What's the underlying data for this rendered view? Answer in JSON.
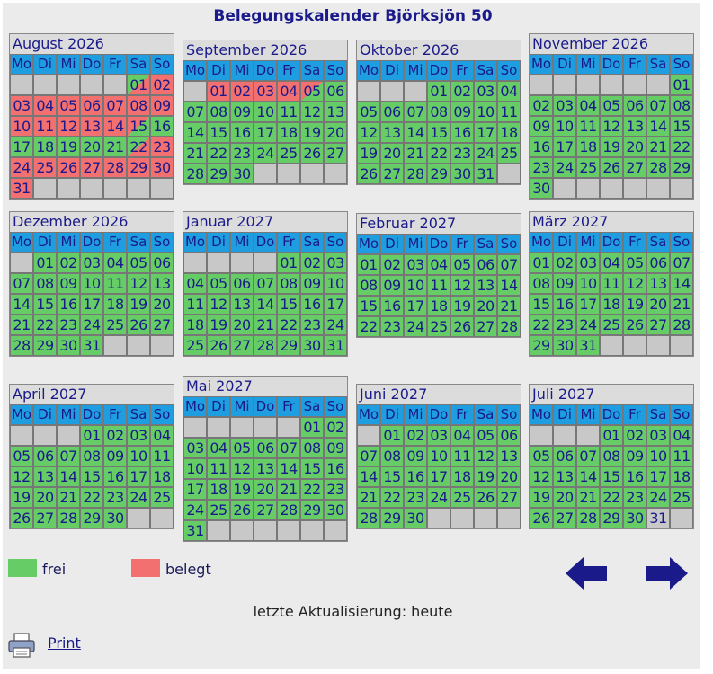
{
  "title": "Belegungskalender Björksjön 50",
  "weekdays": [
    "Mo",
    "Di",
    "Mi",
    "Do",
    "Fr",
    "Sa",
    "So"
  ],
  "months": [
    {
      "name": "August 2026",
      "offset": 5,
      "days": 31,
      "status": {
        "1": "fb",
        "2": "b",
        "3": "b",
        "4": "b",
        "5": "b",
        "6": "b",
        "7": "b",
        "8": "b",
        "9": "b",
        "10": "b",
        "11": "b",
        "12": "b",
        "13": "b",
        "14": "b",
        "15": "bf",
        "16": "f",
        "17": "f",
        "18": "f",
        "19": "f",
        "20": "f",
        "21": "f",
        "22": "fb",
        "23": "b",
        "24": "b",
        "25": "b",
        "26": "b",
        "27": "b",
        "28": "b",
        "29": "b",
        "30": "b",
        "31": "b"
      }
    },
    {
      "name": "September 2026",
      "offset": 1,
      "days": 30,
      "status": {
        "1": "b",
        "2": "b",
        "3": "b",
        "4": "b",
        "5": "bf"
      }
    },
    {
      "name": "Oktober 2026",
      "offset": 3,
      "days": 31,
      "status": {}
    },
    {
      "name": "November 2026",
      "offset": 6,
      "days": 30,
      "status": {}
    },
    {
      "name": "Dezember 2026",
      "offset": 1,
      "days": 31,
      "status": {}
    },
    {
      "name": "Januar 2027",
      "offset": 4,
      "days": 31,
      "status": {}
    },
    {
      "name": "Februar 2027",
      "offset": 0,
      "days": 28,
      "status": {}
    },
    {
      "name": "März 2027",
      "offset": 0,
      "days": 31,
      "status": {}
    },
    {
      "name": "April 2027",
      "offset": 3,
      "days": 30,
      "status": {}
    },
    {
      "name": "Mai 2027",
      "offset": 5,
      "days": 31,
      "status": {}
    },
    {
      "name": "Juni 2027",
      "offset": 1,
      "days": 30,
      "status": {}
    },
    {
      "name": "Juli 2027",
      "offset": 3,
      "days": 31,
      "status": {
        "31": "e"
      }
    }
  ],
  "legend": {
    "free_label": "frei",
    "busy_label": "belegt"
  },
  "colors": {
    "free": "#66cc66",
    "busy": "#f27070",
    "header": "#1e9ee0",
    "arrow": "#1a1a8a"
  },
  "icons": {
    "prev": "arrow-left-icon",
    "next": "arrow-right-icon",
    "print": "printer-icon"
  },
  "update_text": "letzte Aktualisierung: heute",
  "print_label": "Print"
}
